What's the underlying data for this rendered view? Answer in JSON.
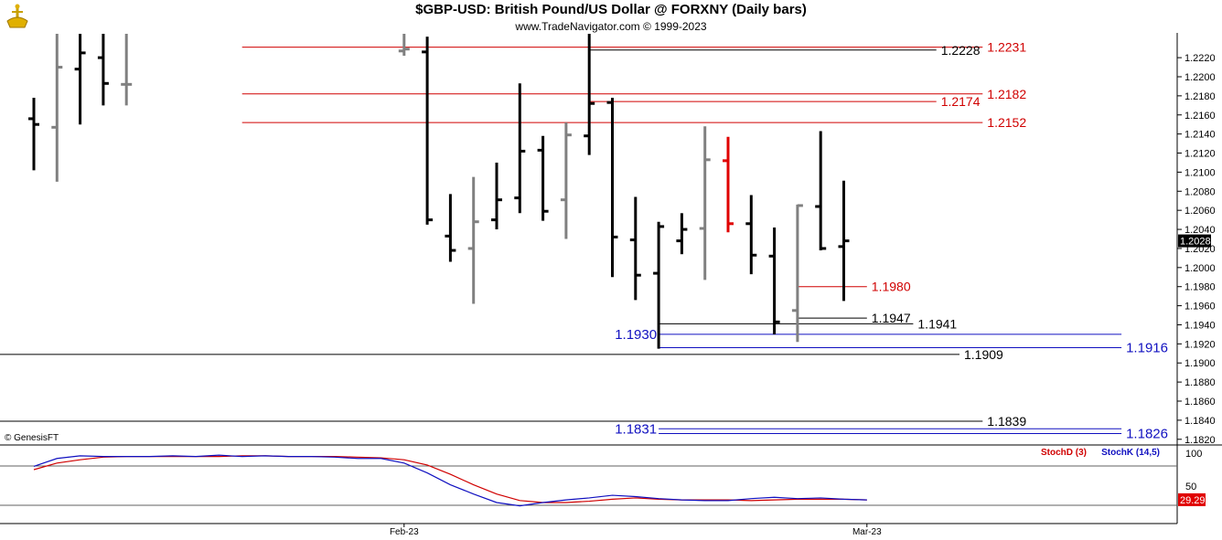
{
  "title": "$GBP-USD:  British Pound/US Dollar @ FORXNY  (Daily bars)",
  "subtitle": "www.TradeNavigator.com © 1999-2023",
  "copyright": "© GenesisFT",
  "colors": {
    "bar": "#000000",
    "bar_down": "#808080",
    "bar_highlight": "#e00000",
    "resistance": "#d00000",
    "support": "#1010c0",
    "neutral": "#000000",
    "stoch_d": "#d00000",
    "stoch_k": "#1010c0",
    "axis_text": "#000000"
  },
  "chart_data": [
    {
      "type": "ohlc",
      "title": "$GBP-USD:  British Pound/US Dollar @ FORXNY  (Daily bars)",
      "ylim": [
        1.1815,
        1.2245
      ],
      "y_ticks": [
        "1.2220",
        "1.2200",
        "1.2180",
        "1.2160",
        "1.2140",
        "1.2120",
        "1.2100",
        "1.2080",
        "1.2060",
        "1.2040",
        "1.2020",
        "1.2000",
        "1.1980",
        "1.1960",
        "1.1940",
        "1.1920",
        "1.1900",
        "1.1880",
        "1.1860",
        "1.1840",
        "1.1820"
      ],
      "x_labels": [
        {
          "bar": 16,
          "label": "Feb-23"
        },
        {
          "bar": 36,
          "label": "Mar-23"
        }
      ],
      "last_price": "1.2028",
      "bars": [
        {
          "o": 1.2156,
          "h": 1.2178,
          "l": 1.2102,
          "c": 1.215,
          "col": "bar"
        },
        {
          "o": 1.2147,
          "h": 1.2245,
          "l": 1.209,
          "c": 1.221,
          "col": "bar_down"
        },
        {
          "o": 1.2208,
          "h": 1.2245,
          "l": 1.215,
          "c": 1.2225,
          "col": "bar"
        },
        {
          "o": 1.222,
          "h": 1.2245,
          "l": 1.217,
          "c": 1.2193,
          "col": "bar"
        },
        {
          "o": 1.2192,
          "h": 1.2245,
          "l": 1.217,
          "c": 1.2192,
          "col": "bar_down"
        },
        null,
        null,
        null,
        null,
        null,
        null,
        null,
        null,
        null,
        null,
        null,
        {
          "o": 1.2227,
          "h": 1.2245,
          "l": 1.2222,
          "c": 1.2229,
          "col": "bar_down"
        },
        {
          "o": 1.2226,
          "h": 1.2242,
          "l": 1.2045,
          "c": 1.205,
          "col": "bar"
        },
        {
          "o": 1.2033,
          "h": 1.2077,
          "l": 1.2006,
          "c": 1.2018,
          "col": "bar"
        },
        {
          "o": 1.202,
          "h": 1.2095,
          "l": 1.1962,
          "c": 1.2048,
          "col": "bar_down"
        },
        {
          "o": 1.205,
          "h": 1.211,
          "l": 1.204,
          "c": 1.2071,
          "col": "bar"
        },
        {
          "o": 1.2073,
          "h": 1.2193,
          "l": 1.2057,
          "c": 1.2122,
          "col": "bar"
        },
        {
          "o": 1.2123,
          "h": 1.2138,
          "l": 1.2049,
          "c": 1.2059,
          "col": "bar"
        },
        {
          "o": 1.2071,
          "h": 1.2152,
          "l": 1.203,
          "c": 1.2139,
          "col": "bar_down"
        },
        {
          "o": 1.2138,
          "h": 1.2245,
          "l": 1.2118,
          "c": 1.2172,
          "col": "bar"
        },
        {
          "o": 1.2173,
          "h": 1.2178,
          "l": 1.199,
          "c": 1.2032,
          "col": "bar"
        },
        {
          "o": 1.2029,
          "h": 1.2074,
          "l": 1.1966,
          "c": 1.1992,
          "col": "bar"
        },
        {
          "o": 1.1994,
          "h": 1.2048,
          "l": 1.1915,
          "c": 1.2043,
          "col": "bar"
        },
        {
          "o": 1.2028,
          "h": 1.2057,
          "l": 1.2014,
          "c": 1.204,
          "col": "bar"
        },
        {
          "o": 1.2041,
          "h": 1.2148,
          "l": 1.1987,
          "c": 1.2113,
          "col": "bar_down"
        },
        {
          "o": 1.2112,
          "h": 1.2137,
          "l": 1.2037,
          "c": 1.2046,
          "col": "bar_highlight"
        },
        {
          "o": 1.2046,
          "h": 1.2076,
          "l": 1.1993,
          "c": 1.2013,
          "col": "bar"
        },
        {
          "o": 1.2012,
          "h": 1.2042,
          "l": 1.193,
          "c": 1.1943,
          "col": "bar"
        },
        {
          "o": 1.1955,
          "h": 1.2066,
          "l": 1.1922,
          "c": 1.2065,
          "col": "bar_down"
        },
        {
          "o": 1.2064,
          "h": 1.2143,
          "l": 1.2018,
          "c": 1.202,
          "col": "bar"
        },
        {
          "o": 1.2022,
          "h": 1.2091,
          "l": 1.1965,
          "c": 1.2028,
          "col": "bar"
        }
      ],
      "levels": [
        {
          "value": 1.2231,
          "label": "1.2231",
          "kind": "resistance",
          "from": 9,
          "to": 41,
          "label_at": "right"
        },
        {
          "value": 1.2228,
          "label": "1.2228",
          "kind": "neutral",
          "from": 24,
          "to": 39,
          "label_at": "right"
        },
        {
          "value": 1.2182,
          "label": "1.2182",
          "kind": "resistance",
          "from": 9,
          "to": 41,
          "label_at": "right"
        },
        {
          "value": 1.2174,
          "label": "1.2174",
          "kind": "resistance",
          "from": 24,
          "to": 39,
          "label_at": "right"
        },
        {
          "value": 1.2152,
          "label": "1.2152",
          "kind": "resistance",
          "from": 9,
          "to": 41,
          "label_at": "right"
        },
        {
          "value": 1.198,
          "label": "1.1980",
          "kind": "resistance",
          "from": 33,
          "to": 36,
          "label_at": "right"
        },
        {
          "value": 1.1947,
          "label": "1.1947",
          "kind": "neutral",
          "from": 33,
          "to": 36,
          "label_at": "right"
        },
        {
          "value": 1.1941,
          "label": "1.1941",
          "kind": "neutral",
          "from": 27,
          "to": 38,
          "label_at": "right"
        },
        {
          "value": 1.193,
          "label": "1.1930",
          "kind": "support",
          "from": 27,
          "to": 47,
          "label_at": "left"
        },
        {
          "value": 1.1916,
          "label": "1.1916",
          "kind": "support",
          "from": 27,
          "to": 47,
          "label_at": "right"
        },
        {
          "value": 1.1909,
          "label": "1.1909",
          "kind": "neutral",
          "from": -1,
          "to": 40,
          "label_at": "right"
        },
        {
          "value": 1.1839,
          "label": "1.1839",
          "kind": "neutral",
          "from": -1,
          "to": 41,
          "label_at": "right"
        },
        {
          "value": 1.1831,
          "label": "1.1831",
          "kind": "support",
          "from": 27,
          "to": 47,
          "label_at": "left"
        },
        {
          "value": 1.1826,
          "label": "1.1826",
          "kind": "support",
          "from": 27,
          "to": 47,
          "label_at": "right"
        }
      ]
    },
    {
      "type": "line",
      "title": "",
      "ylim": [
        0,
        100
      ],
      "y_ticks": [
        "100",
        "50"
      ],
      "last_value": "29.29",
      "series": [
        {
          "name": "StochD (3)",
          "color_key": "stoch_d",
          "values": [
            75,
            85,
            90,
            94,
            95,
            95,
            95,
            95,
            95,
            96,
            96,
            95,
            95,
            95,
            94,
            93,
            90,
            82,
            68,
            52,
            38,
            28,
            25,
            25,
            27,
            30,
            32,
            30,
            29,
            29,
            29,
            28,
            29,
            30,
            30,
            30,
            29
          ]
        },
        {
          "name": "StochK (14,5)",
          "color_key": "stoch_k",
          "values": [
            80,
            92,
            96,
            95,
            95,
            95,
            96,
            95,
            97,
            95,
            96,
            95,
            95,
            94,
            92,
            92,
            85,
            70,
            52,
            38,
            25,
            20,
            25,
            29,
            32,
            36,
            34,
            31,
            29,
            28,
            28,
            31,
            33,
            31,
            32,
            30,
            29
          ]
        }
      ]
    }
  ]
}
